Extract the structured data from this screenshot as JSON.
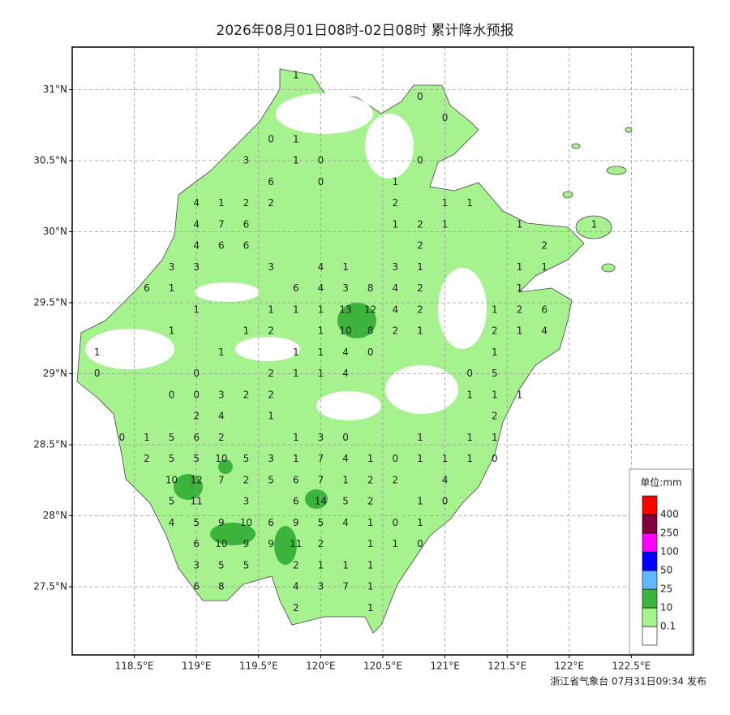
{
  "chart_data": {
    "type": "map",
    "title": "2026年08月01日08时-02日08时 累计降水预报",
    "footer": "浙江省气象台 07月31日09:34 发布",
    "xlim": [
      118.0,
      123.0
    ],
    "ylim": [
      27.02,
      31.3
    ],
    "xticks": [
      {
        "value": 118.5,
        "label": "118.5°E"
      },
      {
        "value": 119,
        "label": "119°E"
      },
      {
        "value": 119.5,
        "label": "119.5°E"
      },
      {
        "value": 120,
        "label": "120°E"
      },
      {
        "value": 120.5,
        "label": "120.5°E"
      },
      {
        "value": 121,
        "label": "121°E"
      },
      {
        "value": 121.5,
        "label": "121.5°E"
      },
      {
        "value": 122,
        "label": "122°E"
      },
      {
        "value": 122.5,
        "label": "122.5°E"
      }
    ],
    "yticks": [
      {
        "value": 27.5,
        "label": "27.5°N"
      },
      {
        "value": 28,
        "label": "28°N"
      },
      {
        "value": 28.5,
        "label": "28.5°N"
      },
      {
        "value": 29,
        "label": "29°N"
      },
      {
        "value": 29.5,
        "label": "29.5°N"
      },
      {
        "value": 30,
        "label": "30°N"
      },
      {
        "value": 30.5,
        "label": "30.5°N"
      },
      {
        "value": 31,
        "label": "31°N"
      }
    ],
    "grid": true,
    "legend": {
      "title": "单位:mm",
      "levels": [
        0.1,
        10,
        25,
        50,
        100,
        250,
        400
      ],
      "colors": [
        "#ffffff",
        "#a6f28f",
        "#3cb43c",
        "#61b8ff",
        "#0000ff",
        "#ff00ff",
        "#80003c",
        "#ff0000"
      ]
    },
    "stations": [
      [
        119.8,
        31.1,
        1
      ],
      [
        120.8,
        30.95,
        0
      ],
      [
        121.0,
        30.8,
        0
      ],
      [
        119.6,
        30.65,
        0
      ],
      [
        119.8,
        30.65,
        1
      ],
      [
        119.4,
        30.5,
        3
      ],
      [
        119.8,
        30.5,
        1
      ],
      [
        120.0,
        30.5,
        0
      ],
      [
        120.8,
        30.5,
        0
      ],
      [
        119.6,
        30.35,
        6
      ],
      [
        120.0,
        30.35,
        0
      ],
      [
        120.6,
        30.35,
        1
      ],
      [
        119.0,
        30.2,
        4
      ],
      [
        119.2,
        30.2,
        1
      ],
      [
        119.4,
        30.2,
        2
      ],
      [
        119.6,
        30.2,
        2
      ],
      [
        120.6,
        30.2,
        2
      ],
      [
        121.0,
        30.2,
        1
      ],
      [
        121.2,
        30.2,
        1
      ],
      [
        119.0,
        30.05,
        4
      ],
      [
        119.2,
        30.05,
        7
      ],
      [
        119.4,
        30.05,
        6
      ],
      [
        120.6,
        30.05,
        1
      ],
      [
        120.8,
        30.05,
        2
      ],
      [
        121.0,
        30.05,
        1
      ],
      [
        121.6,
        30.05,
        1
      ],
      [
        122.2,
        30.05,
        1
      ],
      [
        119.0,
        29.9,
        4
      ],
      [
        119.2,
        29.9,
        6
      ],
      [
        119.4,
        29.9,
        6
      ],
      [
        120.8,
        29.9,
        2
      ],
      [
        121.8,
        29.9,
        2
      ],
      [
        118.8,
        29.75,
        3
      ],
      [
        119.0,
        29.75,
        3
      ],
      [
        119.6,
        29.75,
        3
      ],
      [
        120.0,
        29.75,
        4
      ],
      [
        120.2,
        29.75,
        1
      ],
      [
        120.6,
        29.75,
        3
      ],
      [
        120.8,
        29.75,
        1
      ],
      [
        121.6,
        29.75,
        1
      ],
      [
        121.8,
        29.75,
        1
      ],
      [
        118.6,
        29.6,
        6
      ],
      [
        118.8,
        29.6,
        1
      ],
      [
        119.8,
        29.6,
        6
      ],
      [
        120.0,
        29.6,
        4
      ],
      [
        120.2,
        29.6,
        3
      ],
      [
        120.4,
        29.6,
        8
      ],
      [
        120.6,
        29.6,
        4
      ],
      [
        120.8,
        29.6,
        2
      ],
      [
        121.6,
        29.6,
        1
      ],
      [
        119.0,
        29.45,
        1
      ],
      [
        119.6,
        29.45,
        1
      ],
      [
        119.8,
        29.45,
        1
      ],
      [
        120.0,
        29.45,
        1
      ],
      [
        120.2,
        29.45,
        13
      ],
      [
        120.4,
        29.45,
        12
      ],
      [
        120.6,
        29.45,
        4
      ],
      [
        120.8,
        29.45,
        2
      ],
      [
        121.4,
        29.45,
        1
      ],
      [
        121.6,
        29.45,
        2
      ],
      [
        121.8,
        29.45,
        6
      ],
      [
        118.8,
        29.3,
        1
      ],
      [
        119.4,
        29.3,
        1
      ],
      [
        119.6,
        29.3,
        2
      ],
      [
        120.0,
        29.3,
        1
      ],
      [
        120.2,
        29.3,
        10
      ],
      [
        120.4,
        29.3,
        8
      ],
      [
        120.6,
        29.3,
        2
      ],
      [
        120.8,
        29.3,
        1
      ],
      [
        121.4,
        29.3,
        2
      ],
      [
        121.6,
        29.3,
        1
      ],
      [
        121.8,
        29.3,
        4
      ],
      [
        118.2,
        29.15,
        1
      ],
      [
        119.2,
        29.15,
        1
      ],
      [
        119.8,
        29.15,
        1
      ],
      [
        120.0,
        29.15,
        1
      ],
      [
        120.2,
        29.15,
        4
      ],
      [
        120.4,
        29.15,
        0
      ],
      [
        121.4,
        29.15,
        1
      ],
      [
        118.2,
        29.0,
        0
      ],
      [
        119.0,
        29.0,
        0
      ],
      [
        119.6,
        29.0,
        2
      ],
      [
        119.8,
        29.0,
        1
      ],
      [
        120.0,
        29.0,
        1
      ],
      [
        120.2,
        29.0,
        4
      ],
      [
        121.2,
        29.0,
        0
      ],
      [
        121.4,
        29.0,
        5
      ],
      [
        118.8,
        28.85,
        0
      ],
      [
        119.0,
        28.85,
        0
      ],
      [
        119.2,
        28.85,
        3
      ],
      [
        119.4,
        28.85,
        2
      ],
      [
        119.6,
        28.85,
        2
      ],
      [
        121.2,
        28.85,
        1
      ],
      [
        121.4,
        28.85,
        1
      ],
      [
        121.6,
        28.85,
        1
      ],
      [
        119.0,
        28.7,
        2
      ],
      [
        119.2,
        28.7,
        4
      ],
      [
        119.6,
        28.7,
        1
      ],
      [
        121.4,
        28.7,
        2
      ],
      [
        118.4,
        28.55,
        0
      ],
      [
        118.6,
        28.55,
        1
      ],
      [
        118.8,
        28.55,
        5
      ],
      [
        119.0,
        28.55,
        6
      ],
      [
        119.2,
        28.55,
        2
      ],
      [
        119.8,
        28.55,
        1
      ],
      [
        120.0,
        28.55,
        3
      ],
      [
        120.2,
        28.55,
        0
      ],
      [
        120.8,
        28.55,
        1
      ],
      [
        121.2,
        28.55,
        1
      ],
      [
        121.4,
        28.55,
        1
      ],
      [
        118.6,
        28.4,
        2
      ],
      [
        118.8,
        28.4,
        5
      ],
      [
        119.0,
        28.4,
        5
      ],
      [
        119.2,
        28.4,
        10
      ],
      [
        119.4,
        28.4,
        5
      ],
      [
        119.6,
        28.4,
        3
      ],
      [
        119.8,
        28.4,
        1
      ],
      [
        120.0,
        28.4,
        7
      ],
      [
        120.2,
        28.4,
        4
      ],
      [
        120.4,
        28.4,
        1
      ],
      [
        120.6,
        28.4,
        0
      ],
      [
        120.8,
        28.4,
        1
      ],
      [
        121.0,
        28.4,
        1
      ],
      [
        121.2,
        28.4,
        1
      ],
      [
        121.4,
        28.4,
        0
      ],
      [
        118.8,
        28.25,
        10
      ],
      [
        119.0,
        28.25,
        12
      ],
      [
        119.2,
        28.25,
        7
      ],
      [
        119.4,
        28.25,
        2
      ],
      [
        119.6,
        28.25,
        5
      ],
      [
        119.8,
        28.25,
        6
      ],
      [
        120.0,
        28.25,
        7
      ],
      [
        120.2,
        28.25,
        1
      ],
      [
        120.4,
        28.25,
        2
      ],
      [
        120.6,
        28.25,
        2
      ],
      [
        121.0,
        28.25,
        4
      ],
      [
        118.8,
        28.1,
        5
      ],
      [
        119.0,
        28.1,
        11
      ],
      [
        119.4,
        28.1,
        3
      ],
      [
        119.8,
        28.1,
        6
      ],
      [
        120.0,
        28.1,
        14
      ],
      [
        120.2,
        28.1,
        5
      ],
      [
        120.4,
        28.1,
        2
      ],
      [
        120.8,
        28.1,
        1
      ],
      [
        121.0,
        28.1,
        0
      ],
      [
        118.8,
        27.95,
        4
      ],
      [
        119.0,
        27.95,
        5
      ],
      [
        119.2,
        27.95,
        9
      ],
      [
        119.4,
        27.95,
        10
      ],
      [
        119.6,
        27.95,
        6
      ],
      [
        119.8,
        27.95,
        9
      ],
      [
        120.0,
        27.95,
        5
      ],
      [
        120.2,
        27.95,
        4
      ],
      [
        120.4,
        27.95,
        1
      ],
      [
        120.6,
        27.95,
        0
      ],
      [
        120.8,
        27.95,
        1
      ],
      [
        119.0,
        27.8,
        6
      ],
      [
        119.2,
        27.8,
        10
      ],
      [
        119.4,
        27.8,
        9
      ],
      [
        119.6,
        27.8,
        9
      ],
      [
        119.8,
        27.8,
        11
      ],
      [
        120.0,
        27.8,
        2
      ],
      [
        120.4,
        27.8,
        1
      ],
      [
        120.6,
        27.8,
        1
      ],
      [
        120.8,
        27.8,
        0
      ],
      [
        119.0,
        27.65,
        3
      ],
      [
        119.2,
        27.65,
        5
      ],
      [
        119.4,
        27.65,
        5
      ],
      [
        119.8,
        27.65,
        2
      ],
      [
        120.0,
        27.65,
        1
      ],
      [
        120.2,
        27.65,
        1
      ],
      [
        120.4,
        27.65,
        1
      ],
      [
        119.0,
        27.5,
        6
      ],
      [
        119.2,
        27.5,
        8
      ],
      [
        119.8,
        27.5,
        4
      ],
      [
        120.0,
        27.5,
        3
      ],
      [
        120.2,
        27.5,
        7
      ],
      [
        120.4,
        27.5,
        1
      ],
      [
        119.8,
        27.35,
        2
      ],
      [
        120.4,
        27.35,
        1
      ]
    ]
  }
}
